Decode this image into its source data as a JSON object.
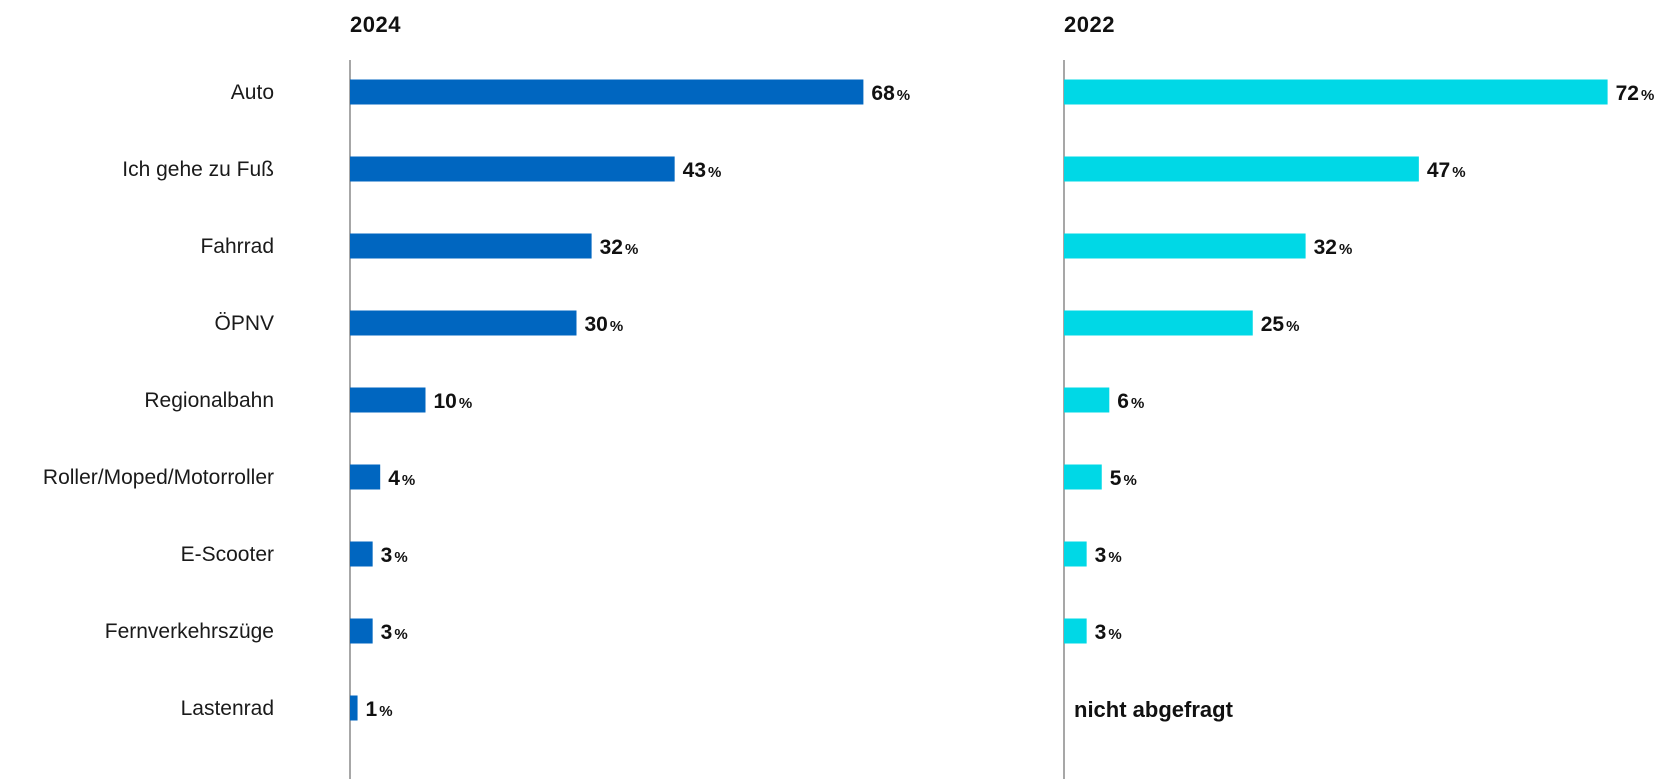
{
  "chart_data": {
    "type": "bar",
    "orientation": "horizontal",
    "categories": [
      "Auto",
      "Ich gehe zu Fuß",
      "Fahrrad",
      "ÖPNV",
      "Regionalbahn",
      "Roller/Moped/Motorroller",
      "E-Scooter",
      "Fernverkehrszüge",
      "Lastenrad"
    ],
    "unit": "%",
    "grid": false,
    "legend": "none",
    "panels": [
      {
        "title": "2024",
        "color": "#0066c0",
        "values": [
          68,
          43,
          32,
          30,
          10,
          4,
          3,
          3,
          1
        ],
        "na_label": ""
      },
      {
        "title": "2022",
        "color": "#00d8e6",
        "values": [
          72,
          47,
          32,
          25,
          6,
          5,
          3,
          3,
          null
        ],
        "na_label": "nicht abgefragt"
      }
    ]
  }
}
